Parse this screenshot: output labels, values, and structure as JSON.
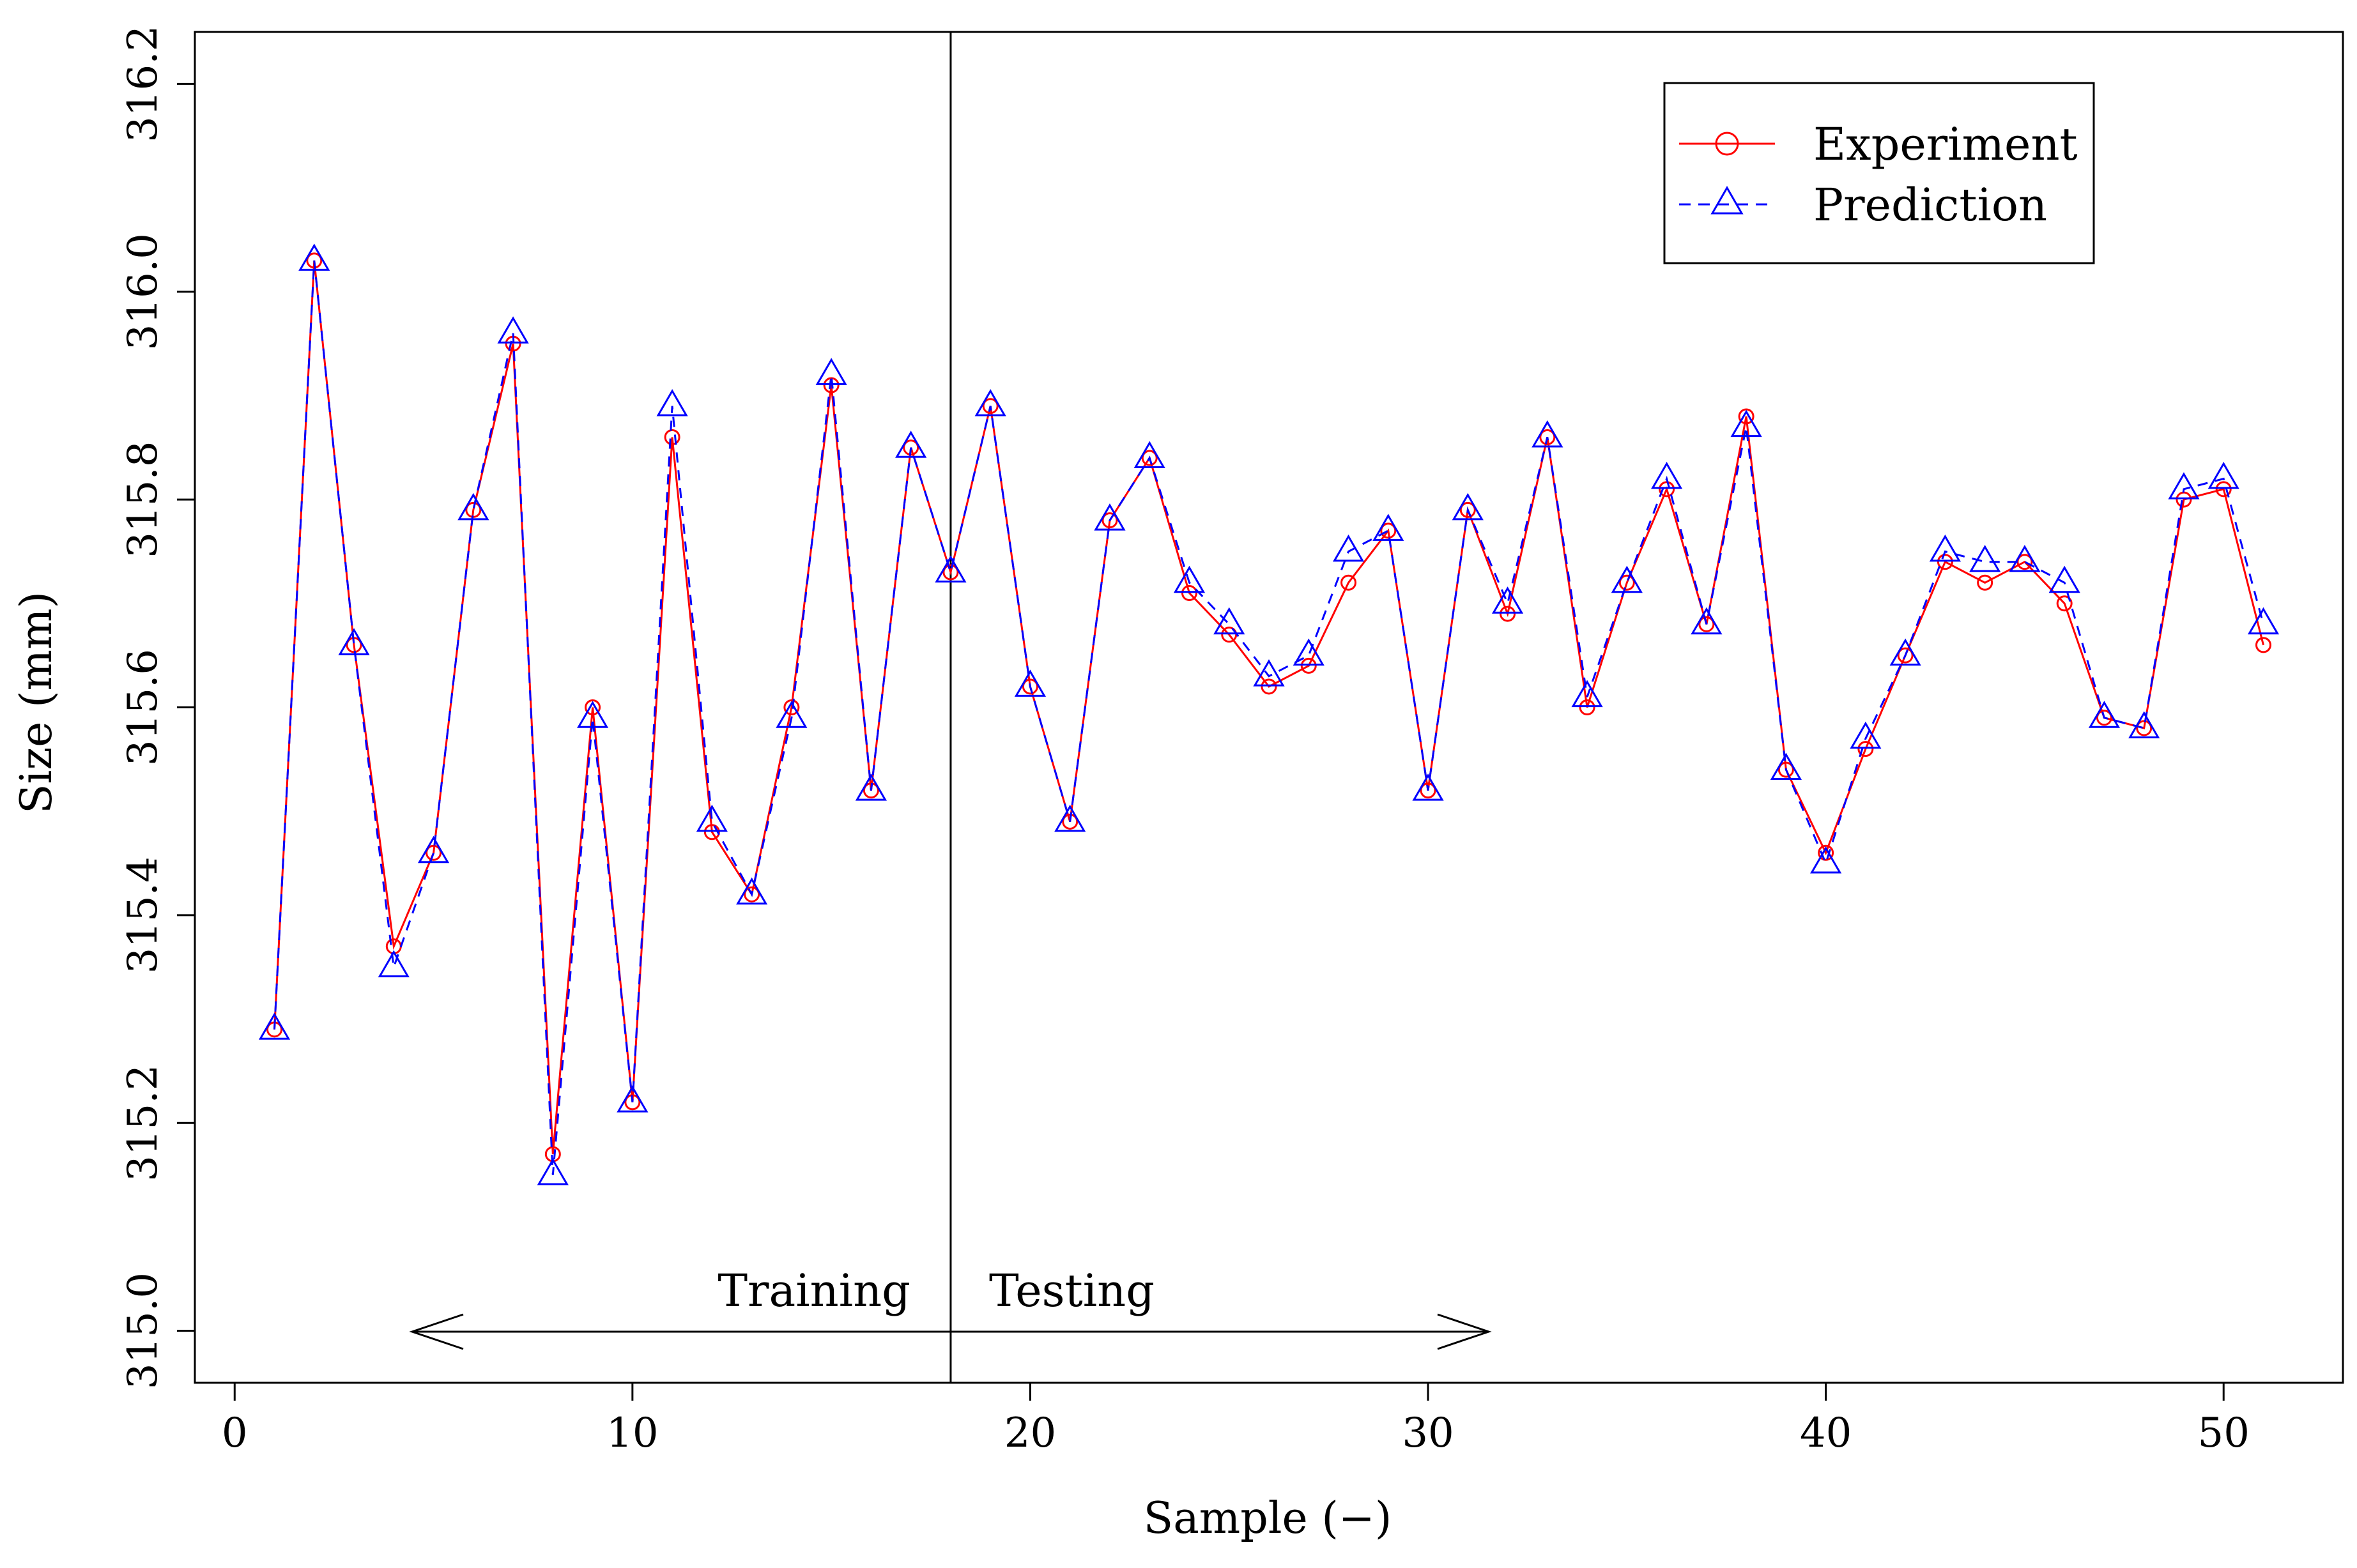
{
  "chart_data": {
    "type": "line",
    "title": "",
    "xlabel": "Sample (−)",
    "ylabel": "Size (mm)",
    "xlim": [
      -1,
      53
    ],
    "ylim": [
      314.95,
      316.25
    ],
    "x_ticks": [
      0,
      10,
      20,
      30,
      40,
      50
    ],
    "x_tick_labels": [
      "0",
      "10",
      "20",
      "30",
      "40",
      "50"
    ],
    "y_ticks": [
      315.0,
      315.2,
      315.4,
      315.6,
      315.8,
      316.0,
      316.2
    ],
    "y_tick_labels": [
      "315.0",
      "315.2",
      "315.4",
      "315.6",
      "315.8",
      "316.0",
      "316.2"
    ],
    "x": [
      1,
      2,
      3,
      4,
      5,
      6,
      7,
      8,
      9,
      10,
      11,
      12,
      13,
      14,
      15,
      16,
      17,
      18,
      19,
      20,
      21,
      22,
      23,
      24,
      25,
      26,
      27,
      28,
      29,
      30,
      31,
      32,
      33,
      34,
      35,
      36,
      37,
      38,
      39,
      40,
      41,
      42,
      43,
      44,
      45,
      46,
      47,
      48,
      49,
      50,
      51
    ],
    "series": [
      {
        "name": "Experiment",
        "color": "#ff0000",
        "marker": "circle",
        "line_style": "solid",
        "values": [
          315.29,
          316.03,
          315.66,
          315.37,
          315.46,
          315.79,
          315.95,
          315.17,
          315.6,
          315.22,
          315.86,
          315.48,
          315.42,
          315.6,
          315.91,
          315.52,
          315.85,
          315.73,
          315.89,
          315.62,
          315.49,
          315.78,
          315.84,
          315.71,
          315.67,
          315.62,
          315.64,
          315.72,
          315.77,
          315.52,
          315.79,
          315.69,
          315.86,
          315.6,
          315.72,
          315.81,
          315.68,
          315.88,
          315.54,
          315.46,
          315.56,
          315.65,
          315.74,
          315.72,
          315.74,
          315.7,
          315.59,
          315.58,
          315.8,
          315.81,
          315.66
        ]
      },
      {
        "name": "Prediction",
        "color": "#0000ff",
        "marker": "triangle",
        "line_style": "dashed",
        "values": [
          315.29,
          316.03,
          315.66,
          315.35,
          315.46,
          315.79,
          315.96,
          315.15,
          315.59,
          315.22,
          315.89,
          315.49,
          315.42,
          315.59,
          315.92,
          315.52,
          315.85,
          315.73,
          315.89,
          315.62,
          315.49,
          315.78,
          315.84,
          315.72,
          315.68,
          315.63,
          315.65,
          315.75,
          315.77,
          315.52,
          315.79,
          315.7,
          315.86,
          315.61,
          315.72,
          315.82,
          315.68,
          315.87,
          315.54,
          315.45,
          315.57,
          315.65,
          315.75,
          315.74,
          315.74,
          315.72,
          315.59,
          315.58,
          315.81,
          315.82,
          315.68
        ]
      }
    ],
    "split_line_x": 18,
    "annotations": {
      "training": "Training",
      "testing": "Testing"
    },
    "legend_position": "top-right"
  }
}
